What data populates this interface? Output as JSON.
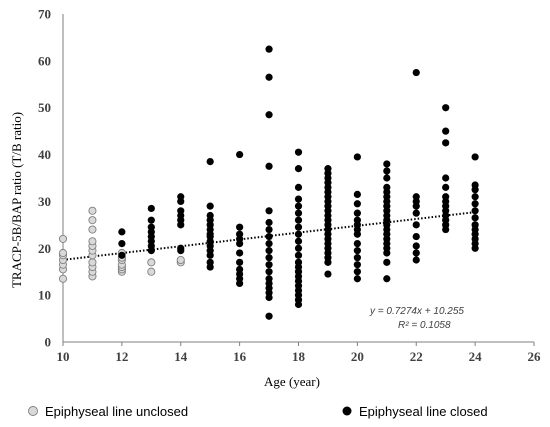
{
  "chart_data": {
    "type": "scatter",
    "xlabel": "Age (year)",
    "ylabel": "TRACP-5B/BAP ratio (T/B ratio)",
    "xlim": [
      10,
      26
    ],
    "ylim": [
      0,
      70
    ],
    "xticks": [
      10,
      12,
      14,
      16,
      18,
      20,
      22,
      24,
      26
    ],
    "yticks": [
      0,
      10,
      20,
      30,
      40,
      50,
      60,
      70
    ],
    "grid": false,
    "legend_position": "bottom",
    "series": [
      {
        "name": "Epiphyseal line unclosed",
        "marker": "open-circle",
        "color": "#d9d9d9",
        "stroke": "#7f7f7f",
        "points": [
          [
            10,
            13.5
          ],
          [
            10,
            15.5
          ],
          [
            10,
            16.5
          ],
          [
            10,
            17.5
          ],
          [
            10,
            18.5
          ],
          [
            10,
            19
          ],
          [
            10,
            22
          ],
          [
            11,
            14
          ],
          [
            11,
            15
          ],
          [
            11,
            16
          ],
          [
            11,
            17
          ],
          [
            11,
            18.5
          ],
          [
            11,
            19.5
          ],
          [
            11,
            20.5
          ],
          [
            11,
            21.5
          ],
          [
            11,
            24
          ],
          [
            11,
            26
          ],
          [
            11,
            28
          ],
          [
            12,
            15
          ],
          [
            12,
            15.5
          ],
          [
            12,
            16
          ],
          [
            12,
            16.5
          ],
          [
            12,
            17.5
          ],
          [
            12,
            18
          ],
          [
            12,
            19
          ],
          [
            13,
            15
          ],
          [
            13,
            17
          ],
          [
            14,
            17
          ],
          [
            14,
            17.5
          ]
        ]
      },
      {
        "name": "Epiphyseal line closed",
        "marker": "filled-circle",
        "color": "#000000",
        "points": [
          [
            12,
            18.5
          ],
          [
            12,
            21
          ],
          [
            12,
            23.5
          ],
          [
            13,
            19.5
          ],
          [
            13,
            20.5
          ],
          [
            13,
            21.5
          ],
          [
            13,
            22.5
          ],
          [
            13,
            23.5
          ],
          [
            13,
            24.5
          ],
          [
            13,
            26
          ],
          [
            13,
            28.5
          ],
          [
            14,
            19.5
          ],
          [
            14,
            20
          ],
          [
            14,
            25
          ],
          [
            14,
            26
          ],
          [
            14,
            27
          ],
          [
            14,
            28
          ],
          [
            14,
            30
          ],
          [
            14,
            31
          ],
          [
            15,
            16
          ],
          [
            15,
            17
          ],
          [
            15,
            18.5
          ],
          [
            15,
            19.5
          ],
          [
            15,
            20.5
          ],
          [
            15,
            21.5
          ],
          [
            15,
            22.5
          ],
          [
            15,
            23
          ],
          [
            15,
            24
          ],
          [
            15,
            25
          ],
          [
            15,
            26
          ],
          [
            15,
            27
          ],
          [
            15,
            29
          ],
          [
            15,
            38.5
          ],
          [
            16,
            12.5
          ],
          [
            16,
            13.5
          ],
          [
            16,
            14.5
          ],
          [
            16,
            15.5
          ],
          [
            16,
            17
          ],
          [
            16,
            19
          ],
          [
            16,
            21
          ],
          [
            16,
            22
          ],
          [
            16,
            23
          ],
          [
            16,
            24.5
          ],
          [
            16,
            40
          ],
          [
            17,
            5.5
          ],
          [
            17,
            9.5
          ],
          [
            17,
            10.5
          ],
          [
            17,
            11.5
          ],
          [
            17,
            12.5
          ],
          [
            17,
            13.5
          ],
          [
            17,
            15
          ],
          [
            17,
            16.5
          ],
          [
            17,
            18
          ],
          [
            17,
            19.5
          ],
          [
            17,
            21
          ],
          [
            17,
            22.5
          ],
          [
            17,
            24
          ],
          [
            17,
            25.5
          ],
          [
            17,
            28
          ],
          [
            17,
            37.5
          ],
          [
            17,
            48.5
          ],
          [
            17,
            56.5
          ],
          [
            17,
            62.5
          ],
          [
            18,
            8
          ],
          [
            18,
            9
          ],
          [
            18,
            10
          ],
          [
            18,
            11
          ],
          [
            18,
            12
          ],
          [
            18,
            13
          ],
          [
            18,
            14
          ],
          [
            18,
            15
          ],
          [
            18,
            16
          ],
          [
            18,
            17
          ],
          [
            18,
            18.5
          ],
          [
            18,
            20
          ],
          [
            18,
            21.5
          ],
          [
            18,
            23
          ],
          [
            18,
            24.5
          ],
          [
            18,
            26
          ],
          [
            18,
            27.5
          ],
          [
            18,
            29
          ],
          [
            18,
            30.5
          ],
          [
            18,
            33
          ],
          [
            18,
            37
          ],
          [
            18,
            40.5
          ],
          [
            19,
            14.5
          ],
          [
            19,
            17
          ],
          [
            19,
            18
          ],
          [
            19,
            19
          ],
          [
            19,
            20
          ],
          [
            19,
            21
          ],
          [
            19,
            22
          ],
          [
            19,
            23
          ],
          [
            19,
            24
          ],
          [
            19,
            25
          ],
          [
            19,
            26
          ],
          [
            19,
            27
          ],
          [
            19,
            28
          ],
          [
            19,
            29
          ],
          [
            19,
            30
          ],
          [
            19,
            31
          ],
          [
            19,
            32
          ],
          [
            19,
            33
          ],
          [
            19,
            34
          ],
          [
            19,
            35
          ],
          [
            19,
            36
          ],
          [
            19,
            37
          ],
          [
            20,
            13.5
          ],
          [
            20,
            15
          ],
          [
            20,
            16.5
          ],
          [
            20,
            18
          ],
          [
            20,
            19.5
          ],
          [
            20,
            21
          ],
          [
            20,
            23
          ],
          [
            20,
            24
          ],
          [
            20,
            25
          ],
          [
            20,
            26
          ],
          [
            20,
            27.5
          ],
          [
            20,
            29.5
          ],
          [
            20,
            31.5
          ],
          [
            20,
            39.5
          ],
          [
            21,
            13.5
          ],
          [
            21,
            17
          ],
          [
            21,
            19
          ],
          [
            21,
            20
          ],
          [
            21,
            21
          ],
          [
            21,
            22
          ],
          [
            21,
            23
          ],
          [
            21,
            24
          ],
          [
            21,
            25
          ],
          [
            21,
            26
          ],
          [
            21,
            27
          ],
          [
            21,
            28
          ],
          [
            21,
            29
          ],
          [
            21,
            30
          ],
          [
            21,
            31
          ],
          [
            21,
            32
          ],
          [
            21,
            33
          ],
          [
            21,
            35
          ],
          [
            21,
            36.5
          ],
          [
            21,
            38
          ],
          [
            22,
            17.5
          ],
          [
            22,
            19
          ],
          [
            22,
            20.5
          ],
          [
            22,
            22.5
          ],
          [
            22,
            25
          ],
          [
            22,
            27.5
          ],
          [
            22,
            29
          ],
          [
            22,
            30
          ],
          [
            22,
            31
          ],
          [
            22,
            57.5
          ],
          [
            23,
            24
          ],
          [
            23,
            25
          ],
          [
            23,
            26
          ],
          [
            23,
            27
          ],
          [
            23,
            28
          ],
          [
            23,
            29
          ],
          [
            23,
            30
          ],
          [
            23,
            31
          ],
          [
            23,
            33
          ],
          [
            23,
            35
          ],
          [
            23,
            42.5
          ],
          [
            23,
            45
          ],
          [
            23,
            50
          ],
          [
            24,
            20
          ],
          [
            24,
            21
          ],
          [
            24,
            22
          ],
          [
            24,
            23
          ],
          [
            24,
            24
          ],
          [
            24,
            25
          ],
          [
            24,
            26.5
          ],
          [
            24,
            28
          ],
          [
            24,
            29.5
          ],
          [
            24,
            31
          ],
          [
            24,
            32.5
          ],
          [
            24,
            33.5
          ],
          [
            24,
            39.5
          ]
        ]
      }
    ],
    "trendline": {
      "style": "dotted",
      "slope": 0.7274,
      "intercept": 10.255,
      "equation_label": "y = 0.7274x + 10.255",
      "r2_label": "R² = 0.1058"
    }
  }
}
